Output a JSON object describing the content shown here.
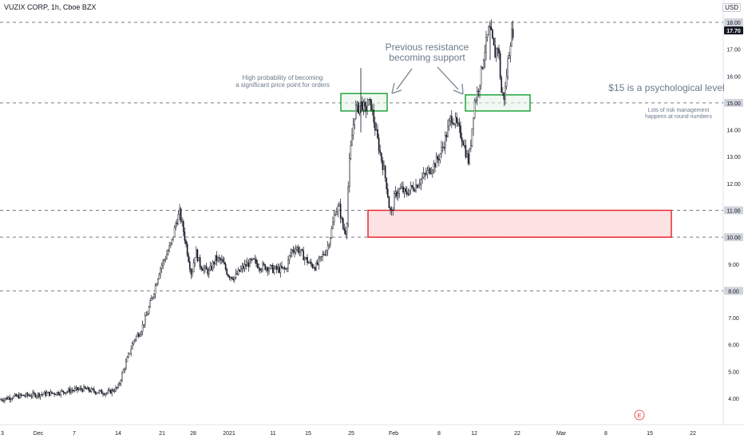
{
  "header": {
    "title": "VUZIX CORP, 1h, Cboe BZX",
    "currency": "USD",
    "event_marker": "E"
  },
  "annotations": {
    "high_probability": "High probability of becoming\na significant price point for orders",
    "previous_resistance": "Previous resistance\nbecoming support",
    "psychological": "$15 is a psychological level",
    "risk_management": "Lots of risk management\nhappens at round numbers"
  },
  "colors": {
    "candle": "#131722",
    "support_box_fill": "#e6f4e8",
    "support_box_stroke": "#22a43a",
    "zone_fill": "#fde2e4",
    "zone_stroke": "#e8292e",
    "level_line": "#787b86",
    "last_price_bg": "#131722"
  },
  "chart_data": {
    "type": "candlestick",
    "x_tick_labels": [
      "3",
      "Dec",
      "7",
      "14",
      "21",
      "28",
      "2021",
      "11",
      "15",
      "25",
      "Feb",
      "8",
      "12",
      "22",
      "Mar",
      "8",
      "15",
      "22"
    ],
    "y_tick_labels": [
      "4.00",
      "5.00",
      "6.00",
      "7.00",
      "9.00",
      "12.00",
      "13.00",
      "14.00",
      "16.00",
      "17.00"
    ],
    "y_range": [
      3.6,
      18.2
    ],
    "horizontal_levels": [
      {
        "value": 18.0,
        "label": "18.00"
      },
      {
        "value": 15.0,
        "label": "15.00"
      },
      {
        "value": 11.0,
        "label": "11.00"
      },
      {
        "value": 10.0,
        "label": "10.00"
      },
      {
        "value": 8.0,
        "label": "8.00"
      }
    ],
    "last_price": {
      "value": 17.7,
      "label": "17.70"
    },
    "zones": [
      {
        "name": "support",
        "y_low": 14.7,
        "y_high": 15.35
      },
      {
        "name": "support",
        "y_low": 14.7,
        "y_high": 15.3
      },
      {
        "name": "demand",
        "y_low": 10.0,
        "y_high": 11.0
      }
    ],
    "price_path": [
      [
        0,
        3.95
      ],
      [
        15,
        4.05
      ],
      [
        30,
        4.1
      ],
      [
        50,
        4.15
      ],
      [
        70,
        4.2
      ],
      [
        90,
        4.3
      ],
      [
        105,
        4.35
      ],
      [
        120,
        4.25
      ],
      [
        135,
        4.2
      ],
      [
        148,
        4.4
      ],
      [
        153,
        4.9
      ],
      [
        160,
        5.5
      ],
      [
        168,
        6.2
      ],
      [
        176,
        6.5
      ],
      [
        185,
        7.2
      ],
      [
        193,
        8.0
      ],
      [
        200,
        8.8
      ],
      [
        208,
        9.3
      ],
      [
        215,
        9.8
      ],
      [
        220,
        10.5
      ],
      [
        225,
        10.9
      ],
      [
        230,
        10.2
      ],
      [
        235,
        9.4
      ],
      [
        240,
        8.6
      ],
      [
        245,
        9.5
      ],
      [
        250,
        9.0
      ],
      [
        256,
        8.8
      ],
      [
        262,
        8.7
      ],
      [
        270,
        9.2
      ],
      [
        278,
        9.1
      ],
      [
        286,
        8.6
      ],
      [
        294,
        8.5
      ],
      [
        302,
        8.8
      ],
      [
        310,
        9.0
      ],
      [
        318,
        9.1
      ],
      [
        326,
        8.9
      ],
      [
        334,
        8.9
      ],
      [
        342,
        8.8
      ],
      [
        350,
        8.8
      ],
      [
        358,
        8.8
      ],
      [
        365,
        9.5
      ],
      [
        372,
        9.6
      ],
      [
        380,
        9.3
      ],
      [
        388,
        9.0
      ],
      [
        396,
        8.9
      ],
      [
        404,
        9.3
      ],
      [
        410,
        9.6
      ],
      [
        415,
        10.2
      ],
      [
        420,
        11.0
      ],
      [
        425,
        11.1
      ],
      [
        430,
        10.3
      ],
      [
        434,
        10.2
      ],
      [
        437,
        12.5
      ],
      [
        441,
        13.8
      ],
      [
        445,
        14.8
      ],
      [
        449,
        14.8
      ],
      [
        453,
        15.0
      ],
      [
        457,
        14.7
      ],
      [
        461,
        15.0
      ],
      [
        465,
        14.9
      ],
      [
        469,
        14.2
      ],
      [
        473,
        13.6
      ],
      [
        477,
        13.0
      ],
      [
        481,
        12.5
      ],
      [
        485,
        11.8
      ],
      [
        488,
        11.0
      ],
      [
        491,
        10.9
      ],
      [
        494,
        11.5
      ],
      [
        498,
        11.7
      ],
      [
        503,
        11.8
      ],
      [
        508,
        11.6
      ],
      [
        514,
        11.8
      ],
      [
        520,
        11.9
      ],
      [
        526,
        12.1
      ],
      [
        532,
        12.3
      ],
      [
        538,
        12.5
      ],
      [
        544,
        12.7
      ],
      [
        550,
        13.0
      ],
      [
        555,
        13.4
      ],
      [
        560,
        13.9
      ],
      [
        565,
        14.5
      ],
      [
        570,
        14.3
      ],
      [
        575,
        14.0
      ],
      [
        580,
        13.6
      ],
      [
        584,
        13.1
      ],
      [
        587,
        12.8
      ],
      [
        590,
        13.6
      ],
      [
        594,
        15.0
      ],
      [
        598,
        15.4
      ],
      [
        602,
        16.0
      ],
      [
        606,
        16.8
      ],
      [
        609,
        17.2
      ],
      [
        613,
        17.8
      ],
      [
        616,
        17.4
      ],
      [
        620,
        16.8
      ],
      [
        624,
        17.2
      ],
      [
        628,
        15.4
      ],
      [
        632,
        15.2
      ],
      [
        636,
        16.5
      ],
      [
        640,
        17.5
      ],
      [
        643,
        17.7
      ]
    ]
  }
}
